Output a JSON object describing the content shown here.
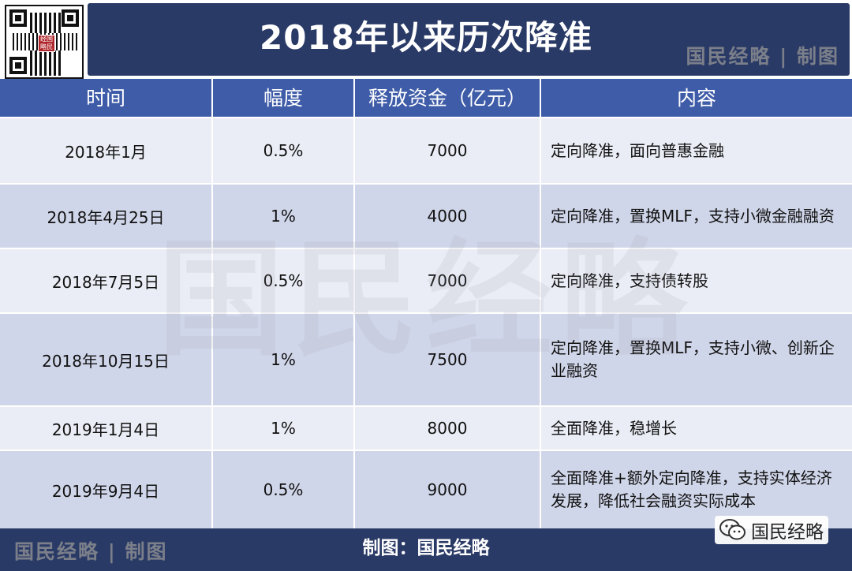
{
  "header": {
    "title": "2018年以来历次降准",
    "brand_mark": "国民经略 | 制图",
    "qr_seal": "经国\n略民"
  },
  "table": {
    "columns": [
      "时间",
      "幅度",
      "释放资金（亿元）",
      "内容"
    ],
    "rows": [
      {
        "date": "2018年1月",
        "ratio": "0.5%",
        "amount": "7000",
        "content": "定向降准，面向普惠金融"
      },
      {
        "date": "2018年4月25日",
        "ratio": "1%",
        "amount": "4000",
        "content": "定向降准，置换MLF，支持小微金融融资"
      },
      {
        "date": "2018年7月5日",
        "ratio": "0.5%",
        "amount": "7000",
        "content": "定向降准，支持债转股"
      },
      {
        "date": "2018年10月15日",
        "ratio": "1%",
        "amount": "7500",
        "content": "定向降准，置换MLF，支持小微、创新企业融资"
      },
      {
        "date": "2019年1月4日",
        "ratio": "1%",
        "amount": "8000",
        "content": "全面降准，稳增长"
      },
      {
        "date": "2019年9月4日",
        "ratio": "0.5%",
        "amount": "9000",
        "content": "全面降准+额外定向降准，支持实体经济发展，降低社会融资实际成本"
      }
    ]
  },
  "watermark": "国民经略",
  "footer": {
    "brand_mark": "国民经略 | 制图",
    "credit": "制图：国民经略",
    "wechat_account": "国民经略",
    "wechat_icon": "wechat-icon"
  },
  "colors": {
    "title_bar": "#2a3a66",
    "header_row": "#3f5ca8",
    "row_light": "#eaedf5",
    "row_dark": "#d0d6e9"
  }
}
